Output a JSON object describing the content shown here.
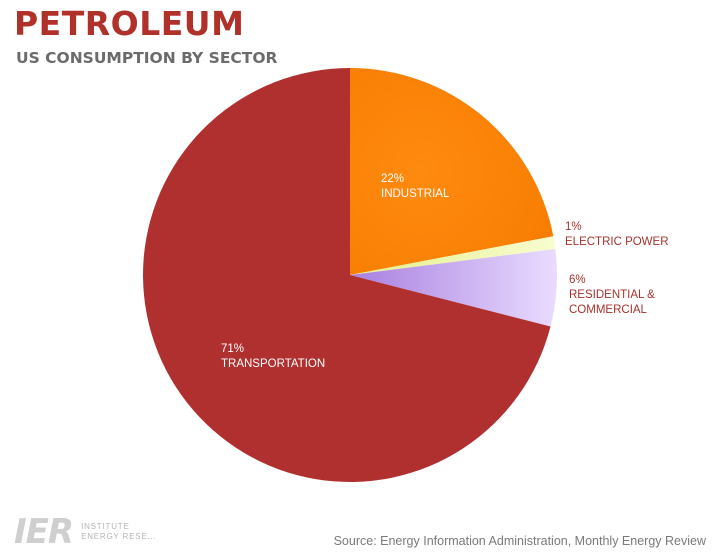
{
  "header": {
    "title": "PETROLEUM",
    "subtitle": "US CONSUMPTION BY SECTOR"
  },
  "chart_data": {
    "type": "pie",
    "slices": [
      {
        "id": "industrial",
        "value": 22,
        "percent_label": "22%",
        "label_lines": [
          "INDUSTRIAL"
        ],
        "color": "#ff8000",
        "label_color": "#ffffff",
        "label_position": "inside"
      },
      {
        "id": "electric-power",
        "value": 1,
        "percent_label": "1%",
        "label_lines": [
          "ELECTRIC POWER"
        ],
        "color": "#eef7a0",
        "label_color": "#a8322c",
        "label_position": "outside"
      },
      {
        "id": "residential-commercial",
        "value": 6,
        "percent_label": "6%",
        "label_lines": [
          "RESIDENTIAL &",
          "COMMERCIAL"
        ],
        "color": "#c6a5f0",
        "label_color": "#a8322c",
        "label_position": "outside"
      },
      {
        "id": "transportation",
        "value": 71,
        "percent_label": "71%",
        "label_lines": [
          "TRANSPORTATION"
        ],
        "color": "#b0302f",
        "label_color": "#ffffff",
        "label_position": "inside"
      }
    ],
    "start_angle": "12 o'clock",
    "direction": "clockwise"
  },
  "footer": {
    "source": "Source: Energy Information Administration, Monthly Energy Review",
    "logo_mark": "IER",
    "logo_line1": "INSTITUTE",
    "logo_line2": "ENERGY RESE..."
  }
}
